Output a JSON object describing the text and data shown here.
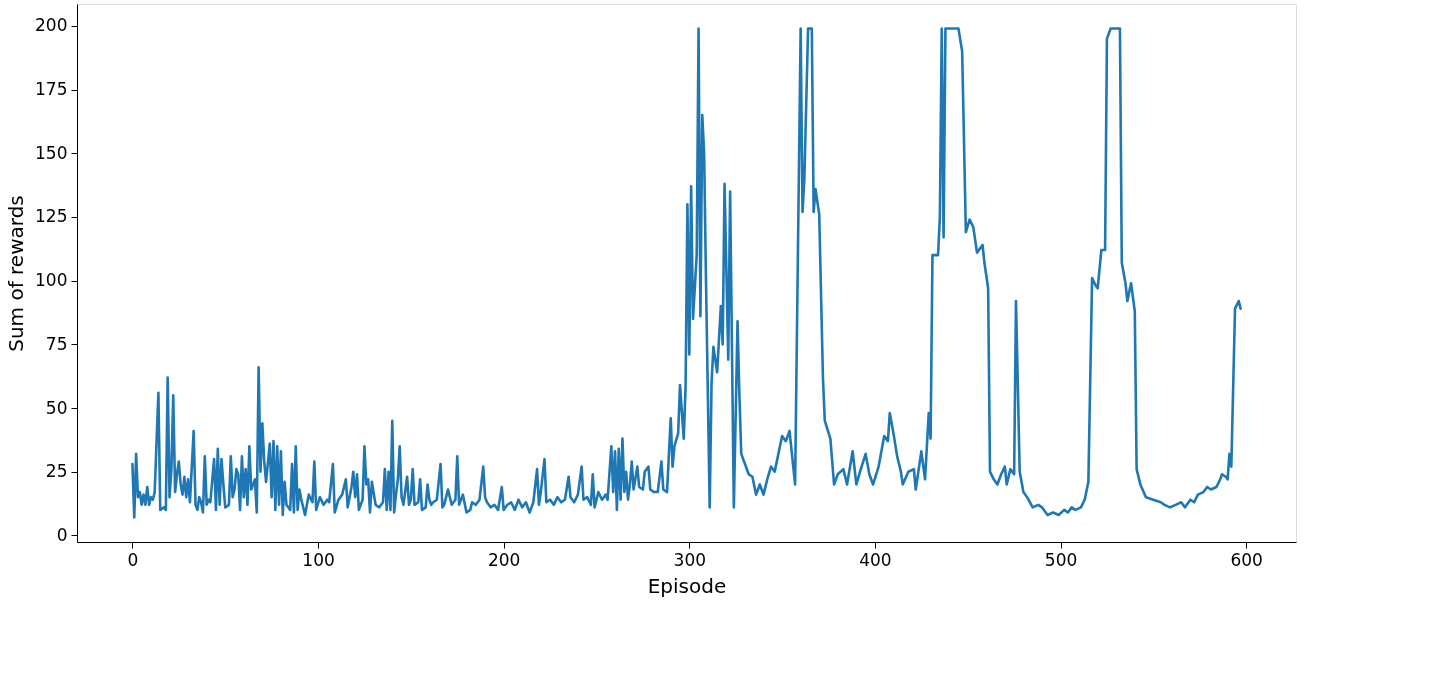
{
  "chart_data": {
    "type": "line",
    "xlabel": "Episode",
    "ylabel": "Sum of rewards",
    "xlim": [
      -29.85,
      626.85
    ],
    "xticks": [
      0,
      100,
      200,
      300,
      400,
      500,
      600
    ],
    "ylim": [
      -2.6,
      208.6
    ],
    "yticks": [
      0,
      25,
      50,
      75,
      100,
      125,
      150,
      175,
      200
    ],
    "grid": false,
    "marker": "none",
    "line_style": "solid",
    "series": [
      {
        "color": "#1f77b4",
        "x": [
          0,
          1,
          2,
          3,
          4,
          5,
          6,
          7,
          8,
          9,
          10,
          11,
          12,
          14,
          15,
          17,
          18,
          19,
          20,
          21,
          22,
          23,
          24,
          25,
          26,
          27,
          28,
          29,
          30,
          31,
          33,
          34,
          35,
          36,
          37,
          38,
          39,
          40,
          41,
          42,
          44,
          45,
          46,
          47,
          48,
          49,
          50,
          52,
          53,
          54,
          55,
          56,
          57,
          58,
          59,
          60,
          61,
          62,
          63,
          64,
          66,
          67,
          68,
          69,
          70,
          71,
          72,
          74,
          75,
          76,
          77,
          78,
          79,
          80,
          81,
          82,
          83,
          85,
          86,
          87,
          88,
          89,
          90,
          91,
          93,
          95,
          97,
          98,
          99,
          101,
          103,
          105,
          106,
          108,
          109,
          111,
          113,
          115,
          116,
          118,
          119,
          120,
          121,
          122,
          124,
          125,
          126,
          127,
          128,
          129,
          131,
          133,
          135,
          136,
          137,
          138,
          139,
          140,
          141,
          142,
          143,
          144,
          145,
          146,
          148,
          149,
          150,
          151,
          152,
          154,
          155,
          156,
          158,
          159,
          160,
          161,
          162,
          164,
          166,
          167,
          168,
          170,
          172,
          174,
          175,
          176,
          178,
          180,
          182,
          183,
          185,
          187,
          189,
          190,
          191,
          193,
          195,
          197,
          199,
          200,
          202,
          204,
          206,
          208,
          210,
          212,
          214,
          216,
          218,
          219,
          220,
          222,
          223,
          225,
          227,
          229,
          231,
          233,
          235,
          236,
          238,
          240,
          242,
          243,
          245,
          247,
          248,
          249,
          251,
          253,
          255,
          256,
          258,
          259,
          260,
          261,
          262,
          263,
          264,
          265,
          266,
          267,
          268,
          269,
          270,
          272,
          273,
          275,
          276,
          278,
          279,
          281,
          283,
          285,
          286,
          288,
          290,
          291,
          292,
          294,
          295,
          297,
          298,
          299,
          300,
          301,
          302,
          304,
          305,
          306,
          307,
          308,
          309,
          311,
          312,
          313,
          315,
          317,
          318,
          319,
          321,
          322,
          324,
          326,
          327,
          328,
          330,
          332,
          334,
          336,
          338,
          340,
          342,
          344,
          346,
          348,
          350,
          352,
          354,
          357,
          360,
          361,
          362,
          364,
          366,
          367,
          368,
          370,
          372,
          373,
          376,
          378,
          380,
          383,
          385,
          388,
          390,
          392,
          395,
          397,
          399,
          402,
          405,
          407,
          408,
          410,
          412,
          414,
          415,
          418,
          421,
          422,
          425,
          427,
          429,
          430,
          431,
          434,
          435,
          436,
          437,
          438,
          440,
          442,
          445,
          447,
          449,
          451,
          453,
          455,
          458,
          459,
          461,
          462,
          464,
          466,
          468,
          470,
          471,
          473,
          475,
          476,
          478,
          480,
          482,
          485,
          488,
          490,
          493,
          496,
          499,
          502,
          504,
          506,
          508,
          511,
          513,
          515,
          517,
          519,
          520,
          522,
          524,
          525,
          527,
          530,
          532,
          533,
          535,
          536,
          538,
          540,
          541,
          543,
          546,
          550,
          554,
          556,
          559,
          562,
          565,
          567,
          570,
          572,
          574,
          577,
          579,
          581,
          584,
          586,
          587,
          589,
          590,
          591,
          592,
          594,
          596,
          597
        ],
        "values": [
          28,
          7,
          32,
          15,
          17,
          12,
          16,
          12,
          19,
          12,
          15,
          14,
          17,
          56,
          10,
          11,
          10,
          62,
          15,
          26,
          55,
          17,
          24,
          29,
          20,
          16,
          23,
          15,
          22,
          13,
          41,
          12,
          10,
          15,
          13,
          9,
          31,
          12,
          14,
          13,
          30,
          10,
          34,
          12,
          30,
          20,
          11,
          12,
          31,
          15,
          18,
          26,
          24,
          10,
          31,
          15,
          26,
          12,
          35,
          18,
          22,
          9,
          66,
          25,
          44,
          29,
          21,
          36,
          15,
          37,
          10,
          35,
          12,
          33,
          8,
          21,
          12,
          10,
          28,
          9,
          35,
          10,
          18,
          14,
          8,
          16,
          13,
          29,
          10,
          15,
          12,
          14,
          13,
          28,
          9,
          14,
          16,
          22,
          11,
          19,
          25,
          15,
          24,
          10,
          14,
          35,
          20,
          22,
          9,
          21,
          12,
          11,
          13,
          26,
          10,
          25,
          10,
          45,
          9,
          16,
          22,
          35,
          15,
          12,
          23,
          12,
          14,
          26,
          12,
          13,
          22,
          10,
          11,
          20,
          14,
          12,
          13,
          14,
          28,
          11,
          12,
          18,
          12,
          14,
          31,
          12,
          16,
          9,
          10,
          13,
          12,
          14,
          27,
          15,
          13,
          11,
          12,
          10,
          19,
          10,
          12,
          13,
          10,
          14,
          11,
          13,
          9,
          13,
          26,
          12,
          17,
          30,
          13,
          14,
          12,
          15,
          13,
          14,
          23,
          15,
          13,
          16,
          27,
          14,
          15,
          12,
          24,
          11,
          17,
          14,
          16,
          14,
          35,
          17,
          33,
          10,
          34,
          14,
          38,
          17,
          25,
          14,
          20,
          29,
          18,
          27,
          19,
          18,
          25,
          27,
          18,
          17,
          17,
          29,
          18,
          17,
          46,
          27,
          35,
          40,
          59,
          38,
          58,
          130,
          71,
          137,
          85,
          110,
          199,
          86,
          165,
          150,
          100,
          11,
          60,
          74,
          64,
          90,
          75,
          138,
          69,
          135,
          11,
          84,
          55,
          32,
          28,
          24,
          23,
          16,
          20,
          16,
          22,
          27,
          25,
          32,
          39,
          37,
          41,
          20,
          199,
          127,
          140,
          199,
          199,
          127,
          136,
          126,
          62,
          45,
          38,
          20,
          24,
          26,
          20,
          33,
          20,
          25,
          32,
          24,
          20,
          27,
          39,
          37,
          48,
          40,
          31,
          25,
          20,
          25,
          26,
          18,
          33,
          22,
          48,
          38,
          110,
          110,
          125,
          199,
          117,
          199,
          199,
          199,
          199,
          190,
          119,
          124,
          121,
          111,
          114,
          107,
          97,
          25,
          22,
          20,
          24,
          27,
          20,
          26,
          24,
          92,
          25,
          17,
          15,
          11,
          12,
          11,
          8,
          9,
          8,
          10,
          9,
          11,
          10,
          11,
          14,
          21,
          101,
          98,
          97,
          112,
          112,
          195,
          199,
          199,
          199,
          107,
          99,
          92,
          99,
          88,
          26,
          20,
          15,
          14,
          13,
          12,
          11,
          12,
          13,
          11,
          14,
          13,
          16,
          17,
          19,
          18,
          19,
          22,
          24,
          23,
          22,
          32,
          27,
          89,
          92,
          89
        ]
      }
    ]
  }
}
